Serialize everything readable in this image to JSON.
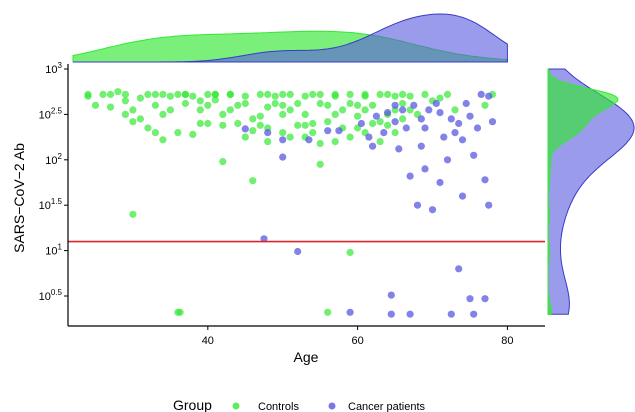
{
  "chart_data": {
    "type": "scatter",
    "xlabel": "Age",
    "ylabel": "SARS−CoV−2 Ab",
    "x_ticks": [
      40,
      60,
      80
    ],
    "x_tick_labels": [
      "40",
      "60",
      "80"
    ],
    "xlim": [
      21,
      82
    ],
    "y_scale": "log10",
    "y_ticks_log10": [
      0.5,
      1,
      1.5,
      2,
      2.5,
      3
    ],
    "y_tick_labels": [
      {
        "base": "10",
        "exp": "0.5"
      },
      {
        "base": "10",
        "exp": "1"
      },
      {
        "base": "10",
        "exp": "1.5"
      },
      {
        "base": "10",
        "exp": "2"
      },
      {
        "base": "10",
        "exp": "2.5"
      },
      {
        "base": "10",
        "exp": "3"
      }
    ],
    "ylim_log10": [
      0.3,
      3.05
    ],
    "threshold_line_log10": 1.1,
    "threshold_color": "#d9262a",
    "legend": {
      "title": "Group",
      "placement": "bottom",
      "entries": [
        "Controls",
        "Cancer patients"
      ]
    },
    "colors": {
      "Controls": "#33e833",
      "Cancer patients": "#5858e0"
    },
    "series": [
      {
        "name": "Controls",
        "points": [
          [
            24,
            2.7
          ],
          [
            26,
            2.72
          ],
          [
            28,
            2.75
          ],
          [
            29,
            2.65
          ],
          [
            30,
            2.55
          ],
          [
            31,
            2.68
          ],
          [
            32,
            2.72
          ],
          [
            33,
            2.6
          ],
          [
            34,
            2.5
          ],
          [
            35,
            2.7
          ],
          [
            36,
            2.72
          ],
          [
            37,
            2.62
          ],
          [
            38,
            2.7
          ],
          [
            39,
            2.55
          ],
          [
            40,
            2.72
          ],
          [
            41,
            2.66
          ],
          [
            42,
            2.5
          ],
          [
            43,
            2.72
          ],
          [
            44,
            2.6
          ],
          [
            45,
            2.7
          ],
          [
            46,
            2.45
          ],
          [
            47,
            2.72
          ],
          [
            48,
            2.58
          ],
          [
            49,
            2.7
          ],
          [
            50,
            2.5
          ],
          [
            51,
            2.72
          ],
          [
            52,
            2.62
          ],
          [
            53,
            2.7
          ],
          [
            54,
            2.4
          ],
          [
            55,
            2.72
          ],
          [
            56,
            2.6
          ],
          [
            57,
            2.7
          ],
          [
            58,
            2.55
          ],
          [
            59,
            2.72
          ],
          [
            60,
            2.48
          ],
          [
            61,
            2.7
          ],
          [
            62,
            2.6
          ],
          [
            63,
            2.72
          ],
          [
            64,
            2.5
          ],
          [
            65,
            2.7
          ],
          [
            66,
            2.62
          ],
          [
            67,
            2.7
          ],
          [
            25,
            2.6
          ],
          [
            27,
            2.58
          ],
          [
            31,
            2.45
          ],
          [
            33,
            2.72
          ],
          [
            35,
            2.55
          ],
          [
            37,
            2.72
          ],
          [
            39,
            2.65
          ],
          [
            41,
            2.72
          ],
          [
            43,
            2.55
          ],
          [
            45,
            2.62
          ],
          [
            47,
            2.48
          ],
          [
            49,
            2.62
          ],
          [
            51,
            2.55
          ],
          [
            53,
            2.5
          ],
          [
            55,
            2.62
          ],
          [
            57,
            2.5
          ],
          [
            59,
            2.62
          ],
          [
            61,
            2.55
          ],
          [
            63,
            2.42
          ],
          [
            65,
            2.55
          ],
          [
            67,
            2.55
          ],
          [
            44,
            2.4
          ],
          [
            48,
            2.35
          ],
          [
            52,
            2.38
          ],
          [
            58,
            2.35
          ],
          [
            62,
            2.4
          ],
          [
            50,
            2.3
          ],
          [
            56,
            2.42
          ],
          [
            60,
            2.35
          ],
          [
            66,
            2.45
          ],
          [
            32,
            2.35
          ],
          [
            36,
            2.3
          ],
          [
            40,
            2.4
          ],
          [
            46,
            2.32
          ],
          [
            54,
            2.3
          ],
          [
            64,
            2.38
          ],
          [
            30,
            2.42
          ],
          [
            42,
            2.38
          ],
          [
            48,
            2.2
          ],
          [
            51,
            2.25
          ],
          [
            55,
            2.18
          ],
          [
            59,
            2.25
          ],
          [
            63,
            2.2
          ],
          [
            45,
            2.25
          ],
          [
            38,
            2.28
          ],
          [
            34,
            2.22
          ],
          [
            53,
            2.25
          ],
          [
            57,
            2.2
          ],
          [
            29,
            2.5
          ],
          [
            33,
            2.3
          ],
          [
            39,
            2.4
          ],
          [
            47,
            2.38
          ],
          [
            53,
            2.38
          ],
          [
            61,
            2.3
          ],
          [
            65,
            2.3
          ],
          [
            69,
            2.72
          ],
          [
            70,
            2.65
          ],
          [
            72,
            2.72
          ],
          [
            77,
            2.6
          ],
          [
            78,
            2.72
          ],
          [
            68,
            2.5
          ],
          [
            71,
            2.68
          ],
          [
            73,
            2.55
          ],
          [
            30,
            1.4
          ],
          [
            42,
            1.98
          ],
          [
            46,
            1.77
          ],
          [
            55,
            1.95
          ],
          [
            59,
            0.98
          ],
          [
            36,
            0.32
          ],
          [
            36.3,
            0.32
          ],
          [
            56,
            0.32
          ],
          [
            24,
            2.72
          ],
          [
            29,
            2.72
          ],
          [
            37,
            2.72
          ],
          [
            43,
            2.72
          ],
          [
            50,
            2.72
          ],
          [
            57,
            2.72
          ],
          [
            64,
            2.72
          ],
          [
            27,
            2.72
          ],
          [
            34,
            2.72
          ],
          [
            41,
            2.72
          ],
          [
            48,
            2.72
          ],
          [
            54,
            2.72
          ],
          [
            61,
            2.72
          ],
          [
            66,
            2.72
          ],
          [
            40,
            2.6
          ],
          [
            50,
            2.6
          ],
          [
            60,
            2.6
          ]
        ]
      },
      {
        "name": "Cancer patients",
        "points": [
          [
            47.5,
            1.13
          ],
          [
            52,
            0.99
          ],
          [
            59,
            0.32
          ],
          [
            64.5,
            0.51
          ],
          [
            64.5,
            0.3
          ],
          [
            67,
            0.3
          ],
          [
            72.5,
            0.3
          ],
          [
            75.5,
            0.3
          ],
          [
            77,
            0.47
          ],
          [
            75,
            0.47
          ],
          [
            73.5,
            0.8
          ],
          [
            70,
            1.45
          ],
          [
            68,
            1.5
          ],
          [
            74,
            1.6
          ],
          [
            77.5,
            1.5
          ],
          [
            71,
            1.75
          ],
          [
            67,
            1.82
          ],
          [
            69,
            1.9
          ],
          [
            72,
            2.0
          ],
          [
            75.5,
            2.05
          ],
          [
            77,
            1.78
          ],
          [
            68.5,
            2.15
          ],
          [
            71.5,
            2.25
          ],
          [
            74,
            2.22
          ],
          [
            73,
            2.3
          ],
          [
            76,
            2.35
          ],
          [
            78,
            2.42
          ],
          [
            69.5,
            2.55
          ],
          [
            72.5,
            2.45
          ],
          [
            77.5,
            2.7
          ],
          [
            76.5,
            2.72
          ],
          [
            65,
            2.6
          ],
          [
            66,
            2.55
          ],
          [
            70.5,
            2.62
          ],
          [
            74.5,
            2.62
          ],
          [
            57.5,
            2.32
          ],
          [
            60.5,
            2.4
          ],
          [
            63.5,
            2.3
          ],
          [
            45,
            2.34
          ],
          [
            48,
            2.3
          ],
          [
            50,
            2.22
          ],
          [
            53.5,
            2.22
          ],
          [
            56,
            2.32
          ],
          [
            61.5,
            2.25
          ],
          [
            65,
            2.42
          ],
          [
            66.5,
            2.35
          ],
          [
            67.5,
            2.6
          ],
          [
            68.5,
            2.45
          ],
          [
            62,
            2.15
          ],
          [
            65.5,
            2.12
          ],
          [
            73.5,
            2.4
          ],
          [
            71,
            2.52
          ],
          [
            75,
            2.48
          ],
          [
            64,
            2.52
          ],
          [
            62.5,
            2.48
          ],
          [
            50,
            2.03
          ],
          [
            69,
            2.35
          ]
        ]
      }
    ]
  }
}
